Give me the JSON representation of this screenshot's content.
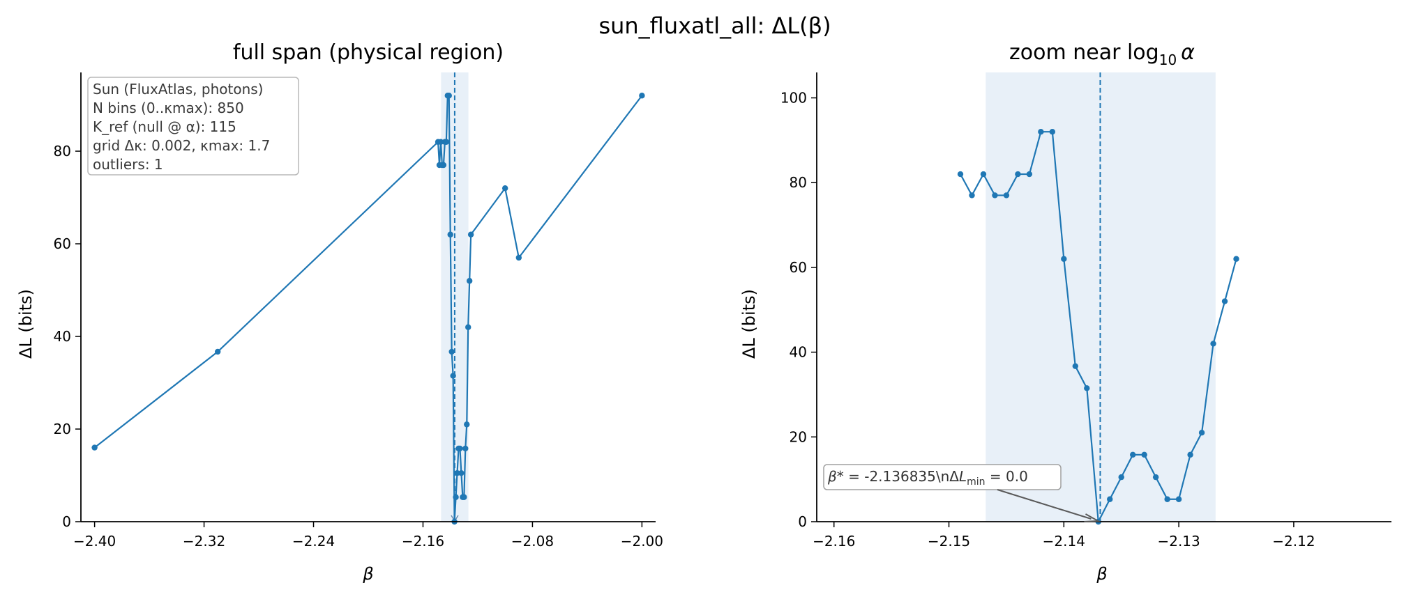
{
  "figure": {
    "suptitle": "sun_fluxatl_all: ΔL(β)"
  },
  "colors": {
    "series": "#1f77b4",
    "band": "#e8f0f8",
    "axis": "#000000",
    "annotation_arrow": "#5a5a5a",
    "box_edge": "#b0b0b0"
  },
  "chart_data": [
    {
      "type": "line",
      "title": "full span (physical region)",
      "xlabel": "β",
      "ylabel": "ΔL (bits)",
      "xlim": [
        -2.41,
        -1.99
      ],
      "ylim": [
        0,
        97
      ],
      "xticks": [
        -2.4,
        -2.32,
        -2.24,
        -2.16,
        -2.08,
        -2.0
      ],
      "xtick_labels": [
        "−2.40",
        "−2.32",
        "−2.24",
        "−2.16",
        "−2.08",
        "−2.00"
      ],
      "yticks": [
        0,
        20,
        40,
        60,
        80
      ],
      "ytick_labels": [
        "0",
        "20",
        "40",
        "60",
        "80"
      ],
      "grid": false,
      "shaded_band_x": [
        -2.1468,
        -2.1268
      ],
      "vline_x": -2.136835,
      "series": [
        {
          "x": [
            -2.4,
            -2.31,
            -2.149,
            -2.148,
            -2.147,
            -2.146,
            -2.145,
            -2.144,
            -2.143,
            -2.142,
            -2.141,
            -2.14,
            -2.139,
            -2.138,
            -2.137,
            -2.136,
            -2.135,
            -2.134,
            -2.133,
            -2.132,
            -2.131,
            -2.13,
            -2.129,
            -2.128,
            -2.127,
            -2.126,
            -2.125,
            -2.1,
            -2.09,
            -2.0
          ],
          "y": [
            16,
            36.7,
            82,
            77,
            82,
            77,
            77,
            82,
            82,
            92,
            92,
            62,
            36.7,
            31.5,
            0,
            5.3,
            10.5,
            15.8,
            15.8,
            10.5,
            5.3,
            5.3,
            15.8,
            21,
            42,
            52,
            62,
            72,
            57,
            92
          ]
        }
      ],
      "info_box": [
        "Sun (FluxAtlas, photons)",
        "N bins (0..κmax): 850",
        "K_ref (null @ α): 115",
        "grid Δκ: 0.002, κmax: 1.7",
        "outliers: 1"
      ]
    },
    {
      "type": "line",
      "title_prefix": "zoom near log",
      "title_sub": "10",
      "title_suffix": "α",
      "xlabel": "β",
      "ylabel": "ΔL (bits)",
      "xlim": [
        -2.1615,
        -2.1115
      ],
      "ylim": [
        0,
        106
      ],
      "xticks": [
        -2.16,
        -2.15,
        -2.14,
        -2.13,
        -2.12
      ],
      "xtick_labels": [
        "−2.16",
        "−2.15",
        "−2.14",
        "−2.13",
        "−2.12"
      ],
      "yticks": [
        0,
        20,
        40,
        60,
        80,
        100
      ],
      "ytick_labels": [
        "0",
        "20",
        "40",
        "60",
        "80",
        "100"
      ],
      "grid": false,
      "shaded_band_x": [
        -2.1468,
        -2.1268
      ],
      "vline_x": -2.136835,
      "series": [
        {
          "x": [
            -2.149,
            -2.148,
            -2.147,
            -2.146,
            -2.145,
            -2.144,
            -2.143,
            -2.142,
            -2.141,
            -2.14,
            -2.139,
            -2.138,
            -2.137,
            -2.136,
            -2.135,
            -2.134,
            -2.133,
            -2.132,
            -2.131,
            -2.13,
            -2.129,
            -2.128,
            -2.127,
            -2.126,
            -2.125
          ],
          "y": [
            82,
            77,
            82,
            77,
            77,
            82,
            82,
            92,
            92,
            62,
            36.7,
            31.5,
            0,
            5.3,
            10.5,
            15.8,
            15.8,
            10.5,
            5.3,
            5.3,
            15.8,
            21,
            42,
            52,
            62
          ]
        }
      ],
      "annotation": {
        "beta_label": "β*",
        "beta_text": " = -2.136835\\nΔ",
        "l_label": "L",
        "l_sub": "min",
        "value_text": " = 0.0",
        "target_x": -2.136835,
        "target_y": 0
      }
    }
  ]
}
